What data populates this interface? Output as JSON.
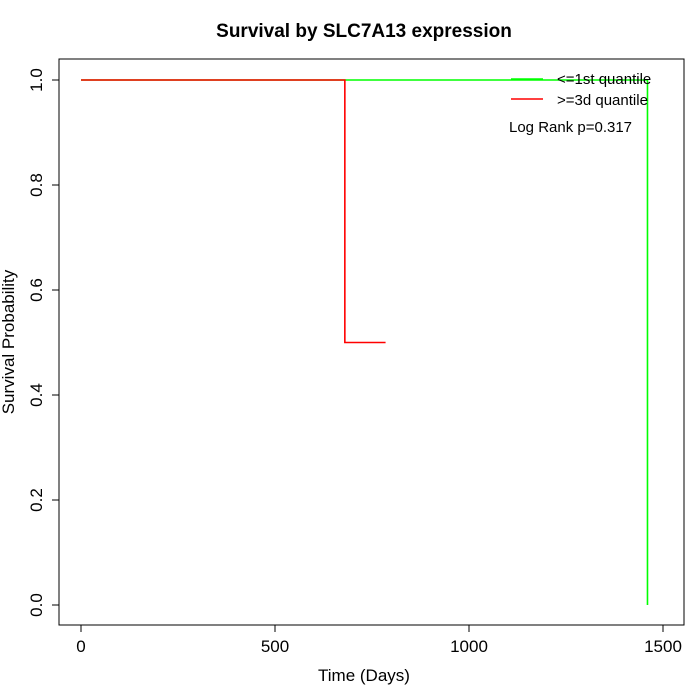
{
  "chart_data": {
    "type": "line",
    "title": "Survival by SLC7A13 expression",
    "xlabel": "Time (Days)",
    "ylabel": "Survival Probability",
    "xlim": [
      0,
      1500
    ],
    "ylim": [
      0,
      1
    ],
    "x_ticks": [
      0,
      500,
      1000,
      1500
    ],
    "y_ticks": [
      0.0,
      0.2,
      0.4,
      0.6,
      0.8,
      1.0
    ],
    "x_tick_labels": [
      "0",
      "500",
      "1000",
      "1500"
    ],
    "y_tick_labels": [
      "0.0",
      "0.2",
      "0.4",
      "0.6",
      "0.8",
      "1.0"
    ],
    "legend_position": "top-right",
    "grid": false,
    "series": [
      {
        "name": "<=1st quantile",
        "color": "#00ff00",
        "step": true,
        "points": [
          [
            0,
            1.0
          ],
          [
            1460,
            1.0
          ],
          [
            1460,
            0.0
          ]
        ]
      },
      {
        "name": ">=3d quantile",
        "color": "#ff0000",
        "step": true,
        "points": [
          [
            0,
            1.0
          ],
          [
            680,
            1.0
          ],
          [
            680,
            0.5
          ],
          [
            785,
            0.5
          ]
        ]
      }
    ],
    "annotation": "Log Rank p=0.317"
  }
}
